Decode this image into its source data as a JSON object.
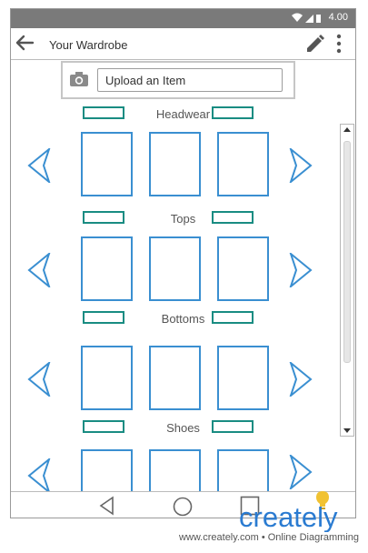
{
  "status_bar": {
    "time": "4.00",
    "icons": [
      "wifi-icon",
      "signal-icon",
      "battery-icon"
    ]
  },
  "app_bar": {
    "title": "Your Wardrobe",
    "icons": [
      "back-arrow-icon",
      "edit-pencil-icon",
      "more-vert-icon"
    ]
  },
  "upload": {
    "label": "Upload an Item",
    "icon": "camera-icon"
  },
  "sections": [
    {
      "label": "Headwear"
    },
    {
      "label": "Tops"
    },
    {
      "label": "Bottoms"
    },
    {
      "label": "Shoes"
    }
  ],
  "nav_bar": {
    "icons": [
      "nav-back-icon",
      "nav-home-icon",
      "nav-recents-icon"
    ]
  },
  "branding": {
    "logo_text": "creately",
    "footer": "www.creately.com • Online Diagramming"
  },
  "colors": {
    "tile_border": "#3a8fd1",
    "section_bar": "#198c82",
    "status_bar": "#7a7a7a",
    "logo": "#2a7bd1",
    "bulb": "#f1c232"
  }
}
